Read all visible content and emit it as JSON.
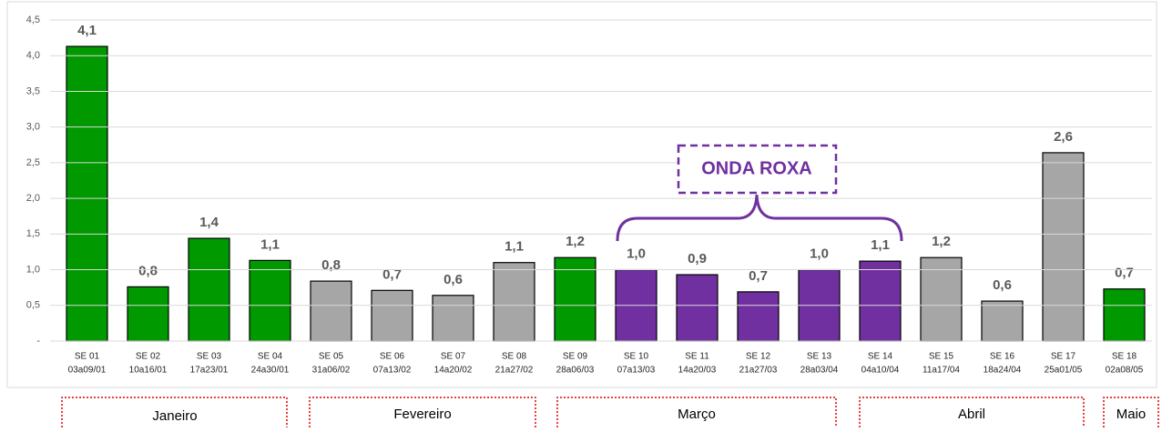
{
  "chart_data": {
    "type": "bar",
    "categories": [
      "SE 01",
      "SE 02",
      "SE 03",
      "SE 04",
      "SE 05",
      "SE 06",
      "SE 07",
      "SE 08",
      "SE 09",
      "SE 10",
      "SE 11",
      "SE 12",
      "SE 13",
      "SE 14",
      "SE 15",
      "SE 16",
      "SE 17",
      "SE 18"
    ],
    "subcategories": [
      "03a09/01",
      "10a16/01",
      "17a23/01",
      "24a30/01",
      "31a06/02",
      "07a13/02",
      "14a20/02",
      "21a27/02",
      "28a06/03",
      "07a13/03",
      "14a20/03",
      "21a27/03",
      "28a03/04",
      "04a10/04",
      "11a17/04",
      "18a24/04",
      "25a01/05",
      "02a08/05"
    ],
    "values": [
      4.13,
      0.76,
      1.44,
      1.13,
      0.84,
      0.71,
      0.64,
      1.1,
      1.17,
      1.0,
      0.93,
      0.69,
      1.0,
      1.12,
      1.17,
      0.56,
      2.64,
      0.73
    ],
    "value_labels": [
      "4,1",
      "0,8",
      "1,4",
      "1,1",
      "0,8",
      "0,7",
      "0,6",
      "1,1",
      "1,2",
      "1,0",
      "0,9",
      "0,7",
      "1,0",
      "1,1",
      "1,2",
      "0,6",
      "2,6",
      "0,7"
    ],
    "colors": [
      "#009900",
      "#009900",
      "#009900",
      "#009900",
      "#a6a6a6",
      "#a6a6a6",
      "#a6a6a6",
      "#a6a6a6",
      "#009900",
      "#7030a0",
      "#7030a0",
      "#7030a0",
      "#7030a0",
      "#7030a0",
      "#a6a6a6",
      "#a6a6a6",
      "#a6a6a6",
      "#009900"
    ],
    "ylim": [
      0,
      4.5
    ],
    "yticks": [
      {
        "value": 0,
        "label": "-"
      },
      {
        "value": 0.5,
        "label": "0,5"
      },
      {
        "value": 1,
        "label": "1,0"
      },
      {
        "value": 1.5,
        "label": "1,5"
      },
      {
        "value": 2,
        "label": "2,0"
      },
      {
        "value": 2.5,
        "label": "2,5"
      },
      {
        "value": 3,
        "label": "3,0"
      },
      {
        "value": 3.5,
        "label": "3,5"
      },
      {
        "value": 4,
        "label": "4,0"
      },
      {
        "value": 4.5,
        "label": "4,5"
      }
    ],
    "grid": true,
    "annotation": "ONDA ROXA",
    "months": [
      "Janeiro",
      "Fevereiro",
      "Março",
      "Abril",
      "Maio"
    ]
  }
}
